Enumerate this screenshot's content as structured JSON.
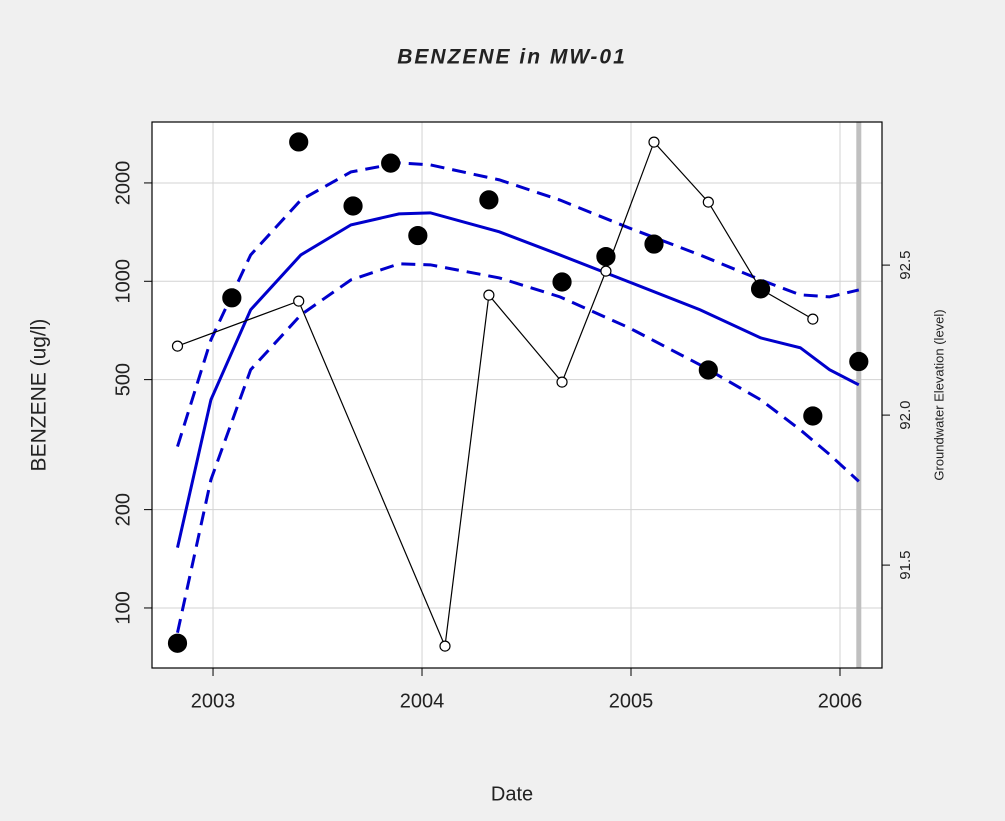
{
  "chart_data": {
    "type": "scatter",
    "title": "BENZENE in MW-01",
    "x_label": "Date",
    "y_label": "BENZENE (ug/l)",
    "y2_label": "Groundwater Elevation (level)",
    "xlim": [
      2002.708,
      2006.201
    ],
    "xticks": [
      2003,
      2004,
      2005,
      2006
    ],
    "ylim": [
      65.5,
      3073
    ],
    "yticks": [
      100,
      200,
      500,
      1000,
      2000
    ],
    "y_log": true,
    "y2lim": [
      91.157,
      92.977
    ],
    "y2ticks": [
      {
        "value": 91.5,
        "label": "91.5"
      },
      {
        "value": 92.0,
        "label": "92.0"
      },
      {
        "value": 92.5,
        "label": "92.5"
      }
    ],
    "grid": true,
    "vline": 2006.09,
    "vline_color": "#c0c0c0",
    "series": [
      {
        "color": "#0000cc",
        "style": "solid",
        "x": [
          2002.83,
          2002.99,
          2003.18,
          2003.42,
          2003.66,
          2003.89,
          2004.04,
          2004.37,
          2004.66,
          2004.99,
          2005.33,
          2005.62,
          2005.81,
          2005.95,
          2006.09
        ],
        "values": [
          153,
          434,
          818,
          1204,
          1488,
          1608,
          1620,
          1417,
          1204,
          996,
          818,
          671,
          626,
          536,
          482
        ]
      },
      {
        "color": "#0000cc",
        "style": "dashed",
        "x": [
          2002.83,
          2002.99,
          2003.18,
          2003.42,
          2003.66,
          2003.89,
          2004.04,
          2004.37,
          2004.66,
          2004.99,
          2005.33,
          2005.62,
          2005.81,
          2005.95,
          2006.09
        ],
        "values": [
          312,
          662,
          1204,
          1773,
          2161,
          2303,
          2271,
          2044,
          1773,
          1457,
          1204,
          1010,
          909,
          896,
          941
        ]
      },
      {
        "color": "#0000cc",
        "style": "dashed",
        "x": [
          2002.83,
          2002.99,
          2003.18,
          2003.42,
          2003.66,
          2003.89,
          2004.04,
          2004.37,
          2004.66,
          2004.99,
          2005.33,
          2005.62,
          2005.81,
          2005.95,
          2006.09
        ],
        "values": [
          84,
          247,
          536,
          789,
          1010,
          1131,
          1123,
          1024,
          896,
          721,
          555,
          434,
          351,
          295,
          244
        ]
      },
      {
        "color": "#000000",
        "style": "open-points-line",
        "axis": "y2",
        "x": [
          2002.83,
          2003.41,
          2004.11,
          2004.32,
          2004.67,
          2004.88,
          2005.11,
          2005.37,
          2005.62,
          2005.87
        ],
        "values": [
          92.23,
          92.38,
          91.23,
          92.4,
          92.11,
          92.48,
          92.91,
          92.71,
          92.42,
          92.32
        ]
      },
      {
        "color": "#000000",
        "style": "filled-points",
        "x": [
          2002.83,
          2003.09,
          2003.41,
          2003.67,
          2003.85,
          2003.98,
          2004.32,
          2004.67,
          2004.88,
          2005.11,
          2005.37,
          2005.62,
          2005.87,
          2006.09
        ],
        "values": [
          78,
          890,
          2670,
          1700,
          2300,
          1380,
          1775,
          995,
          1190,
          1300,
          535,
          948,
          387,
          568
        ]
      }
    ]
  }
}
